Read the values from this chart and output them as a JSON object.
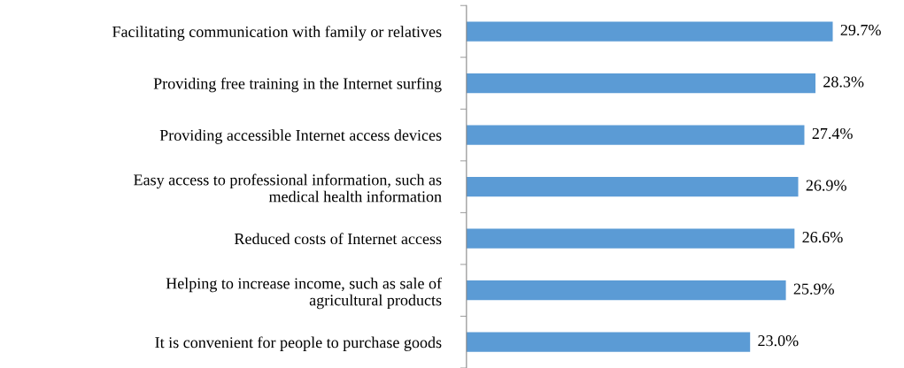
{
  "chart_data": {
    "type": "bar",
    "orientation": "horizontal",
    "categories": [
      "Facilitating communication with family or relatives",
      "Providing free training in the Internet surfing",
      "Providing accessible Internet access devices",
      "Easy access to professional information, such as\nmedical health information",
      "Reduced costs of Internet access",
      "Helping to increase income, such as sale of\nagricultural products",
      "It is convenient for people to purchase goods"
    ],
    "values": [
      29.7,
      28.3,
      27.4,
      26.9,
      26.6,
      25.9,
      23.0
    ],
    "value_labels": [
      "29.7%",
      "28.3%",
      "27.4%",
      "26.9%",
      "26.6%",
      "25.9%",
      "23.0%"
    ],
    "color": "#5b9bd5",
    "tick_labels": "y",
    "grid": false,
    "legend": false
  }
}
